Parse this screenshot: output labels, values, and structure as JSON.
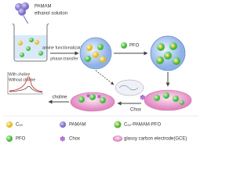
{
  "reagent": {
    "name": "PAMAM",
    "solvent": "ethanol solution"
  },
  "steps": {
    "functionalization": "amine functionalization",
    "transfer": "phase-transfer",
    "pfo": "PFO",
    "chox": "Chox",
    "choline": "choline"
  },
  "plot": {
    "with": "With choline",
    "without": "Without choline"
  },
  "legend": [
    {
      "label": "C₆₀"
    },
    {
      "label": "PAMAM"
    },
    {
      "label": "C₆₀-PAMAM-PFO"
    },
    {
      "label": "PFO"
    },
    {
      "label": "Chox"
    },
    {
      "label": "glassy carbon electrode(GCE)"
    }
  ]
}
